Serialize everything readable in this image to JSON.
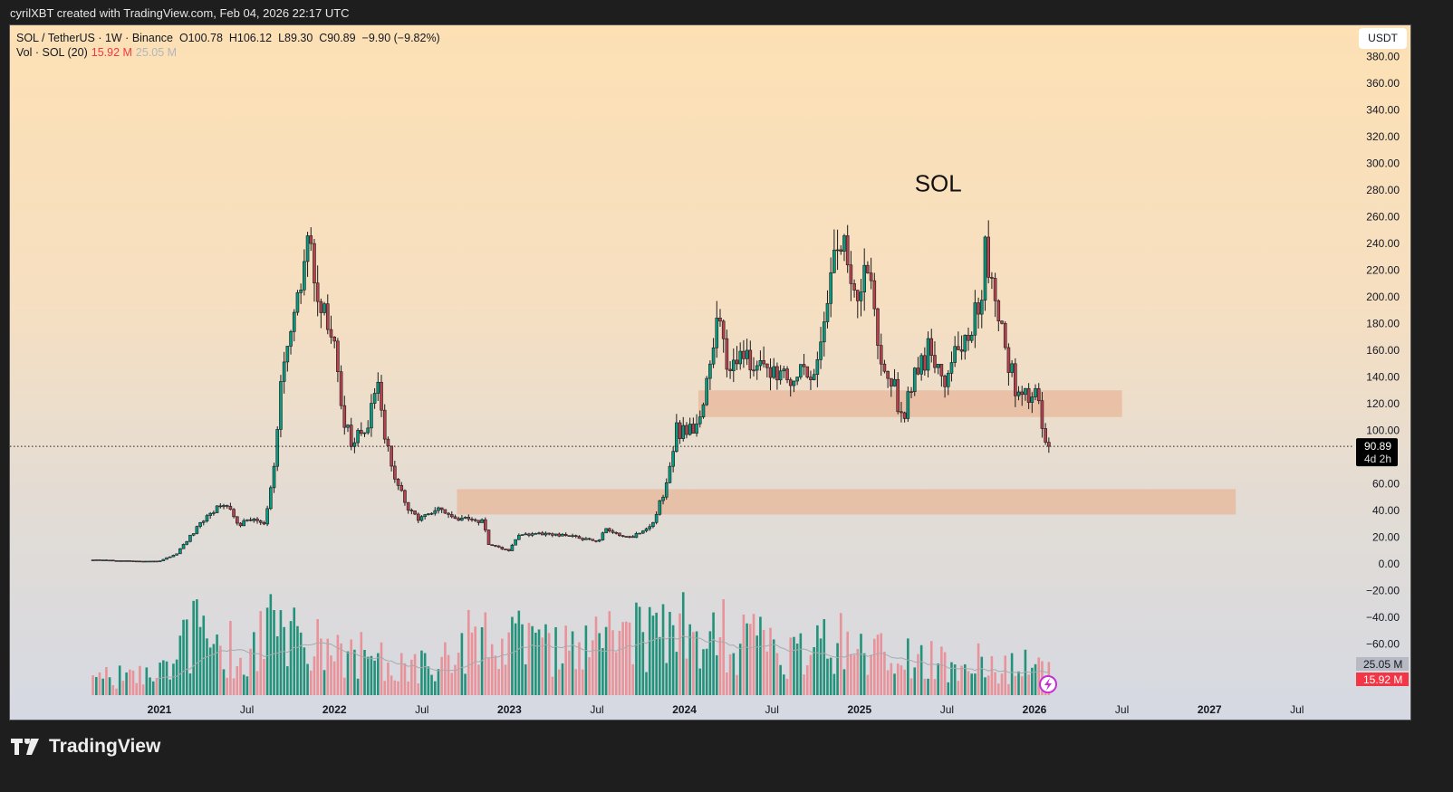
{
  "credit": "cyrilXBT created with TradingView.com, Feb 04, 2026 22:17 UTC",
  "legend": {
    "symbol": "SOL / TetherUS · 1W · Binance",
    "open": "O100.78",
    "high": "H106.12",
    "low": "L89.30",
    "close": "C90.89",
    "change": "−9.90 (−9.82%)",
    "vol_label": "Vol · SOL (20)",
    "vol_value": "15.92 M",
    "vol_ma": "25.05 M"
  },
  "currency_button": "USDT",
  "footer_brand": "TradingView",
  "colors": {
    "up": "#089981",
    "down": "#b5434f",
    "vol_up": "#22927a",
    "vol_down": "#e8939a",
    "zone": "#e8b79a"
  },
  "chart_data": {
    "type": "candlestick",
    "title": "SOL",
    "interval": "1W",
    "y_ticks": [
      "380.00",
      "360.00",
      "340.00",
      "320.00",
      "300.00",
      "280.00",
      "260.00",
      "240.00",
      "220.00",
      "200.00",
      "180.00",
      "160.00",
      "140.00",
      "120.00",
      "100.00",
      "60.00",
      "40.00",
      "20.00",
      "0.00",
      "−20.00",
      "−40.00",
      "−60.00"
    ],
    "y_tick_values": [
      380,
      360,
      340,
      320,
      300,
      280,
      260,
      240,
      220,
      200,
      180,
      160,
      140,
      120,
      100,
      60,
      40,
      20,
      0,
      -20,
      -40,
      -60
    ],
    "x_ticks": [
      {
        "label": "2021",
        "t": 2021.0,
        "bold": true
      },
      {
        "label": "Jul",
        "t": 2021.5,
        "bold": false
      },
      {
        "label": "2022",
        "t": 2022.0,
        "bold": true
      },
      {
        "label": "Jul",
        "t": 2022.5,
        "bold": false
      },
      {
        "label": "2023",
        "t": 2023.0,
        "bold": true
      },
      {
        "label": "Jul",
        "t": 2023.5,
        "bold": false
      },
      {
        "label": "2024",
        "t": 2024.0,
        "bold": true
      },
      {
        "label": "Jul",
        "t": 2024.5,
        "bold": false
      },
      {
        "label": "2025",
        "t": 2025.0,
        "bold": true
      },
      {
        "label": "Jul",
        "t": 2025.5,
        "bold": false
      },
      {
        "label": "2026",
        "t": 2026.0,
        "bold": true
      },
      {
        "label": "Jul",
        "t": 2026.5,
        "bold": false
      },
      {
        "label": "2027",
        "t": 2027.0,
        "bold": true
      },
      {
        "label": "Jul",
        "t": 2027.5,
        "bold": false
      }
    ],
    "price_anchors": [
      [
        2020.62,
        3
      ],
      [
        2020.9,
        2
      ],
      [
        2021.0,
        2
      ],
      [
        2021.1,
        8
      ],
      [
        2021.3,
        40
      ],
      [
        2021.4,
        45
      ],
      [
        2021.45,
        30
      ],
      [
        2021.55,
        35
      ],
      [
        2021.6,
        30
      ],
      [
        2021.65,
        70
      ],
      [
        2021.7,
        140
      ],
      [
        2021.75,
        165
      ],
      [
        2021.8,
        200
      ],
      [
        2021.86,
        245
      ],
      [
        2021.9,
        205
      ],
      [
        2021.95,
        180
      ],
      [
        2022.0,
        170
      ],
      [
        2022.05,
        110
      ],
      [
        2022.1,
        90
      ],
      [
        2022.18,
        100
      ],
      [
        2022.25,
        130
      ],
      [
        2022.3,
        90
      ],
      [
        2022.35,
        60
      ],
      [
        2022.45,
        35
      ],
      [
        2022.5,
        35
      ],
      [
        2022.6,
        40
      ],
      [
        2022.7,
        33
      ],
      [
        2022.85,
        33
      ],
      [
        2022.88,
        14
      ],
      [
        2023.0,
        10
      ],
      [
        2023.05,
        22
      ],
      [
        2023.2,
        22
      ],
      [
        2023.4,
        20
      ],
      [
        2023.5,
        16
      ],
      [
        2023.55,
        25
      ],
      [
        2023.7,
        20
      ],
      [
        2023.82,
        30
      ],
      [
        2023.9,
        60
      ],
      [
        2023.95,
        100
      ],
      [
        2024.0,
        100
      ],
      [
        2024.1,
        110
      ],
      [
        2024.2,
        190
      ],
      [
        2024.25,
        150
      ],
      [
        2024.35,
        160
      ],
      [
        2024.45,
        140
      ],
      [
        2024.55,
        150
      ],
      [
        2024.6,
        140
      ],
      [
        2024.7,
        140
      ],
      [
        2024.75,
        150
      ],
      [
        2024.85,
        230
      ],
      [
        2024.9,
        240
      ],
      [
        2025.0,
        190
      ],
      [
        2025.05,
        230
      ],
      [
        2025.1,
        170
      ],
      [
        2025.2,
        130
      ],
      [
        2025.25,
        110
      ],
      [
        2025.3,
        140
      ],
      [
        2025.4,
        160
      ],
      [
        2025.5,
        140
      ],
      [
        2025.55,
        160
      ],
      [
        2025.65,
        180
      ],
      [
        2025.7,
        200
      ],
      [
        2025.72,
        240
      ],
      [
        2025.78,
        200
      ],
      [
        2025.85,
        150
      ],
      [
        2025.9,
        130
      ],
      [
        2025.95,
        125
      ],
      [
        2026.0,
        135
      ],
      [
        2026.05,
        100
      ],
      [
        2026.09,
        90.89
      ]
    ],
    "volume_anchors_M": [
      [
        2020.6,
        8
      ],
      [
        2021.0,
        10
      ],
      [
        2021.2,
        30
      ],
      [
        2021.5,
        20
      ],
      [
        2021.7,
        35
      ],
      [
        2022.0,
        20
      ],
      [
        2022.5,
        15
      ],
      [
        2022.9,
        30
      ],
      [
        2023.3,
        20
      ],
      [
        2023.8,
        30
      ],
      [
        2024.2,
        30
      ],
      [
        2024.6,
        18
      ],
      [
        2024.9,
        25
      ],
      [
        2025.3,
        18
      ],
      [
        2025.7,
        15
      ],
      [
        2026.0,
        14
      ],
      [
        2026.09,
        15.92
      ]
    ],
    "last_candle": {
      "open": 100.78,
      "high": 106.12,
      "low": 89.3,
      "close": 90.89
    },
    "current_price_label": "90.89",
    "countdown_label": "4d 2h",
    "volume_last_label": "15.92 M",
    "volume_ma_label": "25.05 M",
    "zones": [
      {
        "name": "resistance-zone",
        "t0": 2024.08,
        "t1": 2026.5,
        "p_low": 110,
        "p_high": 130
      },
      {
        "name": "support-zone",
        "t0": 2022.7,
        "t1": 2027.15,
        "p_low": 37,
        "p_high": 56
      }
    ],
    "annotation": {
      "text": "SOL",
      "t": 2025.45,
      "price": 285
    }
  }
}
